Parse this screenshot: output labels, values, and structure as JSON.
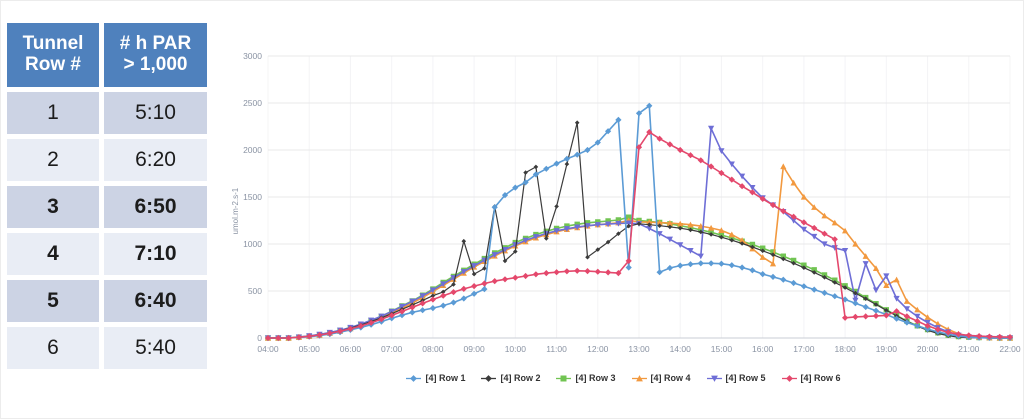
{
  "table": {
    "headers": [
      "Tunnel\nRow #",
      "# h PAR\n> 1,000"
    ],
    "header_bg": "#4F81BD",
    "row_bg_odd": "#CCD3E4",
    "row_bg_even": "#E9EDF5",
    "rows": [
      {
        "row": "1",
        "value": "5:10",
        "bold": false
      },
      {
        "row": "2",
        "value": "6:20",
        "bold": false
      },
      {
        "row": "3",
        "value": "6:50",
        "bold": true
      },
      {
        "row": "4",
        "value": "7:10",
        "bold": true
      },
      {
        "row": "5",
        "value": "6:40",
        "bold": true
      },
      {
        "row": "6",
        "value": "5:40",
        "bold": false
      }
    ]
  },
  "chart_data": {
    "type": "line",
    "title": "",
    "xlabel": "",
    "ylabel": "umol.m-2.s-1",
    "x_range_hours": [
      4,
      22
    ],
    "interval_minutes": 15,
    "ylim": [
      0,
      3000
    ],
    "yticks": [
      0,
      500,
      1000,
      1500,
      2000,
      2500,
      3000
    ],
    "x_tick_labels": [
      "04:00",
      "05:00",
      "06:00",
      "07:00",
      "08:00",
      "09:00",
      "10:00",
      "11:00",
      "12:00",
      "13:00",
      "14:00",
      "15:00",
      "16:00",
      "17:00",
      "18:00",
      "19:00",
      "20:00",
      "21:00",
      "22:00"
    ],
    "grid": "horizontal-light",
    "legend_position": "bottom-center",
    "series": [
      {
        "name": "[4] Row 1",
        "color": "#5B9BD5",
        "shape": "diamond",
        "values": [
          0,
          0,
          0,
          6,
          14,
          26,
          42,
          62,
          86,
          112,
          142,
          175,
          210,
          243,
          272,
          296,
          318,
          345,
          378,
          420,
          470,
          520,
          1390,
          1520,
          1600,
          1655,
          1740,
          1800,
          1855,
          1905,
          1950,
          2000,
          2080,
          2200,
          2320,
          750,
          2390,
          2470,
          700,
          745,
          770,
          785,
          795,
          795,
          790,
          775,
          750,
          720,
          680,
          650,
          620,
          585,
          550,
          515,
          480,
          445,
          410,
          370,
          330,
          290,
          250,
          205,
          165,
          130,
          95,
          65,
          40,
          20,
          8,
          3,
          1,
          0,
          0
        ]
      },
      {
        "name": "[4] Row 2",
        "color": "#3B3B3B",
        "shape": "diamond",
        "values": [
          0,
          0,
          0,
          8,
          18,
          32,
          52,
          76,
          105,
          138,
          175,
          215,
          258,
          305,
          352,
          400,
          450,
          490,
          570,
          1030,
          680,
          740,
          1400,
          820,
          920,
          1760,
          1820,
          1060,
          1400,
          1850,
          2290,
          860,
          940,
          1020,
          1110,
          1190,
          1215,
          1205,
          1195,
          1182,
          1168,
          1150,
          1128,
          1102,
          1072,
          1040,
          1005,
          968,
          928,
          886,
          842,
          796,
          748,
          698,
          646,
          592,
          536,
          478,
          418,
          356,
          295,
          235,
          178,
          126,
          82,
          48,
          24,
          10,
          4,
          2,
          0,
          0,
          0
        ]
      },
      {
        "name": "[4] Row 3",
        "color": "#71C452",
        "shape": "square",
        "values": [
          0,
          0,
          0,
          10,
          20,
          35,
          55,
          80,
          110,
          145,
          185,
          230,
          285,
          340,
          395,
          455,
          520,
          590,
          655,
          720,
          785,
          845,
          905,
          960,
          1015,
          1060,
          1100,
          1135,
          1165,
          1190,
          1210,
          1225,
          1235,
          1245,
          1255,
          1285,
          1250,
          1240,
          1230,
          1215,
          1195,
          1175,
          1150,
          1125,
          1095,
          1065,
          1030,
          995,
          955,
          915,
          870,
          825,
          775,
          725,
          670,
          615,
          555,
          495,
          430,
          365,
          300,
          240,
          180,
          130,
          90,
          55,
          30,
          15,
          8,
          4,
          2,
          0,
          0
        ]
      },
      {
        "name": "[4] Row 4",
        "color": "#F2993F",
        "shape": "triangle",
        "values": [
          0,
          0,
          0,
          8,
          18,
          30,
          50,
          72,
          100,
          135,
          172,
          215,
          265,
          318,
          372,
          430,
          495,
          560,
          625,
          690,
          755,
          815,
          872,
          928,
          980,
          1025,
          1065,
          1100,
          1130,
          1155,
          1175,
          1192,
          1205,
          1215,
          1225,
          1250,
          1235,
          1232,
          1228,
          1222,
          1215,
          1205,
          1190,
          1170,
          1145,
          1100,
          1040,
          950,
          860,
          790,
          1825,
          1650,
          1500,
          1390,
          1300,
          1225,
          1140,
          1000,
          870,
          740,
          560,
          620,
          390,
          300,
          220,
          150,
          90,
          45,
          18,
          8,
          3,
          0,
          0
        ]
      },
      {
        "name": "[4] Row 5",
        "color": "#6E6ED6",
        "shape": "triangle-down",
        "values": [
          0,
          0,
          0,
          10,
          22,
          38,
          58,
          82,
          112,
          148,
          188,
          232,
          282,
          335,
          390,
          448,
          510,
          575,
          640,
          705,
          768,
          828,
          885,
          940,
          992,
          1038,
          1078,
          1112,
          1140,
          1162,
          1180,
          1195,
          1205,
          1212,
          1218,
          1222,
          1215,
          1165,
          1110,
          1050,
          990,
          930,
          870,
          2230,
          1990,
          1850,
          1720,
          1600,
          1490,
          1415,
          1345,
          1250,
          1155,
          1080,
          1000,
          960,
          930,
          400,
          790,
          510,
          660,
          420,
          310,
          230,
          165,
          110,
          65,
          30,
          12,
          5,
          2,
          0,
          0
        ]
      },
      {
        "name": "[4] Row 6",
        "color": "#E4486C",
        "shape": "diamond",
        "values": [
          0,
          0,
          0,
          8,
          18,
          32,
          50,
          72,
          98,
          128,
          162,
          200,
          240,
          282,
          325,
          368,
          410,
          450,
          488,
          522,
          552,
          580,
          605,
          625,
          642,
          660,
          678,
          690,
          700,
          710,
          715,
          712,
          705,
          698,
          690,
          820,
          2030,
          2190,
          2120,
          2060,
          2000,
          1945,
          1890,
          1825,
          1755,
          1685,
          1615,
          1550,
          1480,
          1415,
          1350,
          1290,
          1230,
          1170,
          1110,
          1050,
          215,
          225,
          230,
          235,
          240,
          285,
          230,
          180,
          130,
          90,
          60,
          40,
          28,
          20,
          15,
          12,
          10
        ]
      }
    ],
    "colors": {
      "gridline": "#E8E8EA",
      "axis_line": "#C9CDD4",
      "tick_label": "#8A93A3"
    }
  }
}
